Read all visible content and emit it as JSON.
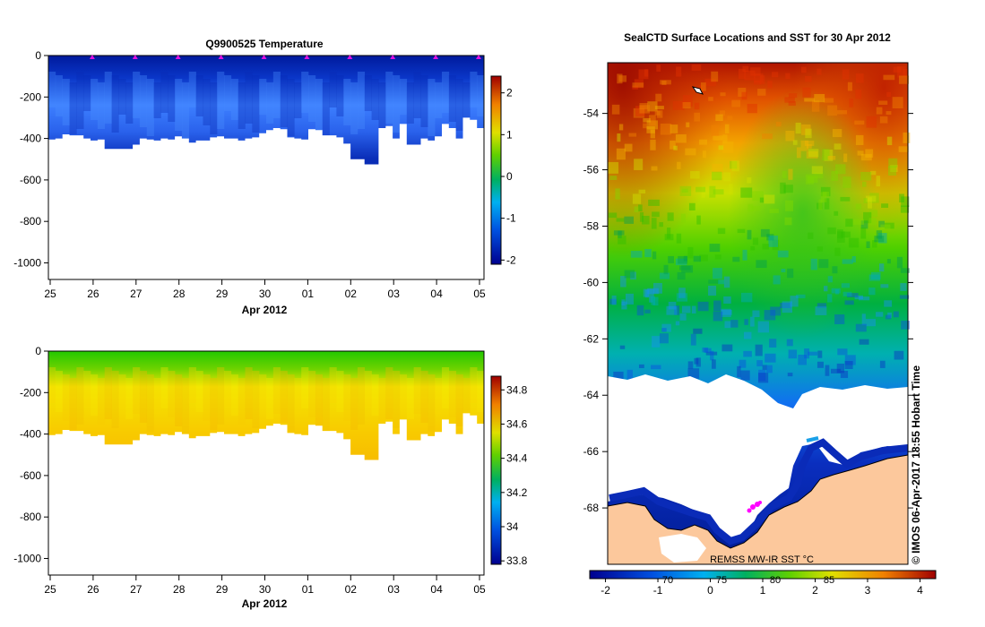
{
  "chart_data": [
    {
      "type": "heatmap",
      "title": "Q9900525  Temperature",
      "xlabel": "Apr 2012",
      "ylabel": "",
      "x_ticks": [
        "25",
        "26",
        "27",
        "28",
        "29",
        "30",
        "01",
        "02",
        "03",
        "04",
        "05"
      ],
      "y_ticks": [
        "0",
        "-200",
        "-400",
        "-600",
        "-800",
        "-1000"
      ],
      "ylim": [
        -1080,
        0
      ],
      "colorbar": {
        "ticks": [
          "2",
          "1",
          "0",
          "-1",
          "-2"
        ],
        "range": [
          -2.1,
          2.4
        ]
      },
      "profile_depths": [
        405,
        400,
        380,
        385,
        385,
        400,
        410,
        405,
        450,
        450,
        450,
        450,
        430,
        400,
        405,
        410,
        400,
        405,
        390,
        400,
        420,
        410,
        410,
        395,
        390,
        400,
        400,
        410,
        400,
        395,
        375,
        360,
        350,
        355,
        395,
        400,
        405,
        355,
        360,
        385,
        385,
        395,
        425,
        500,
        500,
        525,
        525,
        350,
        340,
        400,
        330,
        430,
        430,
        400,
        410,
        390,
        330,
        350,
        400,
        300,
        310,
        350
      ],
      "surface_markers": [
        "26",
        "27",
        "28",
        "29",
        "30",
        "01",
        "02",
        "03",
        "04",
        "05"
      ]
    },
    {
      "type": "heatmap",
      "title": "",
      "xlabel": "Apr 2012",
      "ylabel": "",
      "x_ticks": [
        "25",
        "26",
        "27",
        "28",
        "29",
        "30",
        "01",
        "02",
        "03",
        "04",
        "05"
      ],
      "y_ticks": [
        "0",
        "-200",
        "-400",
        "-600",
        "-800",
        "-1000"
      ],
      "ylim": [
        -1080,
        0
      ],
      "colorbar": {
        "ticks": [
          "34.8",
          "34.6",
          "34.4",
          "34.2",
          "34",
          "33.8"
        ],
        "range": [
          33.78,
          34.88
        ]
      }
    },
    {
      "type": "heatmap",
      "title": "SealCTD Surface Locations and SST for 30 Apr 2012",
      "xlabel": "",
      "ylabel": "",
      "y_ticks": [
        "-54",
        "-56",
        "-58",
        "-60",
        "-62",
        "-64",
        "-66",
        "-68"
      ],
      "ylim": [
        -70,
        -52.2
      ],
      "colorbar": {
        "ticks": [
          "-2",
          "-1",
          "0",
          "1",
          "2",
          "3",
          "4"
        ],
        "range": [
          -2.3,
          4.3
        ]
      },
      "bottom_lon_ticks": [
        "70",
        "75",
        "80",
        "85"
      ],
      "source_label": "REMSS MW-IR SST °C",
      "credit": "© IMOS 06-Apr-2017 18:55 Hobart Time"
    }
  ]
}
